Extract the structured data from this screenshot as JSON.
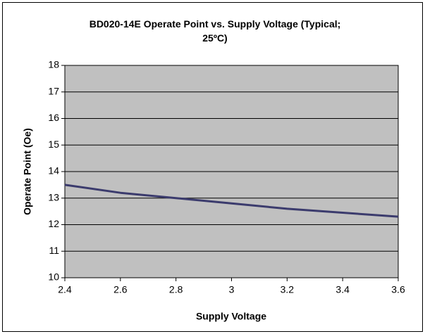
{
  "chart_data": {
    "type": "line",
    "title": "BD020-14E Operate Point vs. Supply Voltage (Typical; 25ºC)",
    "x_label": "Supply Voltage",
    "y_label": "Operate Point (Oe)",
    "x": [
      2.4,
      2.6,
      2.8,
      3.0,
      3.2,
      3.4,
      3.6
    ],
    "series": [
      {
        "name": "Operate Point",
        "color": "#3b3b6d",
        "values": [
          13.5,
          13.2,
          13.0,
          12.8,
          12.6,
          12.45,
          12.3
        ]
      }
    ],
    "xlim": [
      2.4,
      3.6
    ],
    "xticks": [
      2.4,
      2.6,
      2.8,
      3,
      3.2,
      3.4,
      3.6
    ],
    "ylim": [
      10,
      18
    ],
    "yticks": [
      10,
      11,
      12,
      13,
      14,
      15,
      16,
      17,
      18
    ],
    "grid": true,
    "plot_background": "#c0c0c0"
  }
}
